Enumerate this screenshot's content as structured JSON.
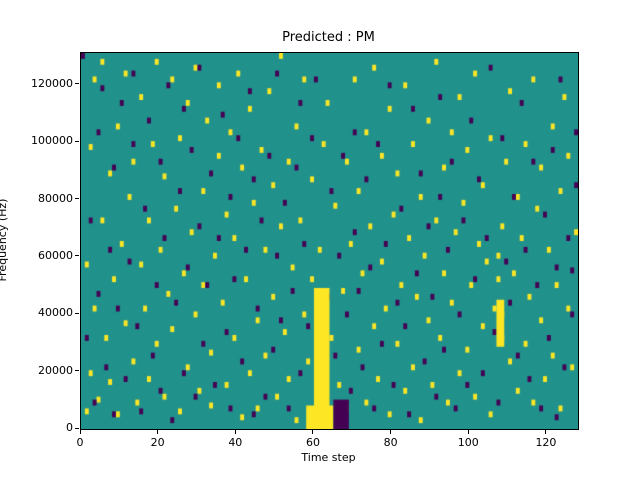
{
  "chart_data": {
    "type": "heatmap",
    "title": "Predicted : PM",
    "xlabel": "Time step",
    "ylabel": "Frequency (Hz)",
    "xlim": [
      0,
      128
    ],
    "ylim": [
      0,
      131072
    ],
    "xticks": [
      0,
      20,
      40,
      60,
      80,
      100,
      120
    ],
    "yticks": [
      0,
      20000,
      40000,
      60000,
      80000,
      100000,
      120000
    ],
    "grid": false,
    "grid_size": {
      "time_steps": 128,
      "freq_bins": 128
    },
    "colors": {
      "background": "#21918c",
      "high": "#fde725",
      "low": "#440154",
      "frame": "#000000"
    },
    "blocks": [
      {
        "c": "y",
        "t": 60,
        "f": 0,
        "w": 4,
        "h": 48
      },
      {
        "c": "y",
        "t": 58,
        "f": 0,
        "w": 7,
        "h": 8
      },
      {
        "c": "p",
        "t": 65,
        "f": 0,
        "w": 4,
        "h": 10
      },
      {
        "c": "y",
        "t": 107,
        "f": 28,
        "w": 2,
        "h": 16
      }
    ],
    "points": {
      "yellow": [
        [
          1,
          5
        ],
        [
          1,
          55
        ],
        [
          2,
          18
        ],
        [
          2,
          95
        ],
        [
          3,
          40
        ],
        [
          3,
          118
        ],
        [
          4,
          9
        ],
        [
          5,
          70
        ],
        [
          5,
          124
        ],
        [
          6,
          30
        ],
        [
          7,
          86
        ],
        [
          7,
          15
        ],
        [
          8,
          50
        ],
        [
          9,
          102
        ],
        [
          9,
          4
        ],
        [
          10,
          62
        ],
        [
          11,
          120
        ],
        [
          11,
          35
        ],
        [
          12,
          78
        ],
        [
          13,
          22
        ],
        [
          13,
          90
        ],
        [
          14,
          8
        ],
        [
          15,
          55
        ],
        [
          15,
          112
        ],
        [
          16,
          40
        ],
        [
          17,
          70
        ],
        [
          17,
          16
        ],
        [
          18,
          96
        ],
        [
          19,
          28
        ],
        [
          19,
          124
        ],
        [
          20,
          60
        ],
        [
          21,
          10
        ],
        [
          21,
          85
        ],
        [
          22,
          45
        ],
        [
          23,
          118
        ],
        [
          23,
          33
        ],
        [
          24,
          74
        ],
        [
          25,
          5
        ],
        [
          25,
          98
        ],
        [
          26,
          52
        ],
        [
          27,
          20
        ],
        [
          27,
          110
        ],
        [
          28,
          66
        ],
        [
          29,
          38
        ],
        [
          29,
          122
        ],
        [
          30,
          12
        ],
        [
          31,
          80
        ],
        [
          31,
          48
        ],
        [
          32,
          104
        ],
        [
          33,
          25
        ],
        [
          33,
          7
        ],
        [
          34,
          58
        ],
        [
          35,
          92
        ],
        [
          35,
          116
        ],
        [
          36,
          42
        ],
        [
          37,
          14
        ],
        [
          37,
          72
        ],
        [
          38,
          100
        ],
        [
          39,
          30
        ],
        [
          39,
          64
        ],
        [
          40,
          120
        ],
        [
          41,
          3
        ],
        [
          41,
          88
        ],
        [
          42,
          50
        ],
        [
          43,
          18
        ],
        [
          43,
          108
        ],
        [
          44,
          76
        ],
        [
          45,
          36
        ],
        [
          45,
          6
        ],
        [
          46,
          94
        ],
        [
          47,
          24
        ],
        [
          47,
          60
        ],
        [
          48,
          114
        ],
        [
          49,
          44
        ],
        [
          49,
          82
        ],
        [
          50,
          10
        ],
        [
          51,
          68
        ],
        [
          51,
          126
        ],
        [
          52,
          32
        ],
        [
          53,
          90
        ],
        [
          53,
          16
        ],
        [
          54,
          54
        ],
        [
          55,
          102
        ],
        [
          55,
          2
        ],
        [
          56,
          70
        ],
        [
          57,
          38
        ],
        [
          57,
          118
        ],
        [
          58,
          22
        ],
        [
          59,
          84
        ],
        [
          59,
          50
        ],
        [
          61,
          60
        ],
        [
          62,
          96
        ],
        [
          63,
          110
        ],
        [
          64,
          30
        ],
        [
          65,
          75
        ],
        [
          66,
          14
        ],
        [
          67,
          46
        ],
        [
          68,
          90
        ],
        [
          68,
          6
        ],
        [
          69,
          62
        ],
        [
          70,
          118
        ],
        [
          71,
          26
        ],
        [
          71,
          80
        ],
        [
          72,
          52
        ],
        [
          73,
          8
        ],
        [
          73,
          100
        ],
        [
          74,
          68
        ],
        [
          75,
          34
        ],
        [
          75,
          122
        ],
        [
          76,
          16
        ],
        [
          77,
          56
        ],
        [
          77,
          92
        ],
        [
          78,
          40
        ],
        [
          79,
          4
        ],
        [
          79,
          108
        ],
        [
          80,
          72
        ],
        [
          81,
          28
        ],
        [
          81,
          86
        ],
        [
          82,
          48
        ],
        [
          83,
          12
        ],
        [
          83,
          116
        ],
        [
          84,
          64
        ],
        [
          85,
          96
        ],
        [
          85,
          20
        ],
        [
          86,
          44
        ],
        [
          87,
          78
        ],
        [
          87,
          2
        ],
        [
          88,
          58
        ],
        [
          89,
          104
        ],
        [
          89,
          36
        ],
        [
          90,
          14
        ],
        [
          91,
          70
        ],
        [
          91,
          124
        ],
        [
          92,
          30
        ],
        [
          93,
          88
        ],
        [
          93,
          52
        ],
        [
          94,
          8
        ],
        [
          95,
          100
        ],
        [
          95,
          42
        ],
        [
          96,
          66
        ],
        [
          97,
          18
        ],
        [
          97,
          112
        ],
        [
          98,
          76
        ],
        [
          99,
          26
        ],
        [
          99,
          94
        ],
        [
          100,
          48
        ],
        [
          101,
          10
        ],
        [
          101,
          120
        ],
        [
          102,
          62
        ],
        [
          103,
          34
        ],
        [
          103,
          82
        ],
        [
          104,
          56
        ],
        [
          105,
          98
        ],
        [
          105,
          4
        ],
        [
          106,
          40
        ],
        [
          107,
          50
        ],
        [
          107,
          58
        ],
        [
          108,
          38
        ],
        [
          108,
          30
        ],
        [
          108,
          68
        ],
        [
          109,
          90
        ],
        [
          110,
          22
        ],
        [
          110,
          114
        ],
        [
          111,
          52
        ],
        [
          112,
          78
        ],
        [
          112,
          12
        ],
        [
          113,
          64
        ],
        [
          114,
          96
        ],
        [
          114,
          28
        ],
        [
          115,
          44
        ],
        [
          116,
          8
        ],
        [
          116,
          118
        ],
        [
          117,
          74
        ],
        [
          118,
          36
        ],
        [
          118,
          88
        ],
        [
          119,
          16
        ],
        [
          120,
          60
        ],
        [
          121,
          102
        ],
        [
          121,
          24
        ],
        [
          122,
          48
        ],
        [
          123,
          80
        ],
        [
          123,
          6
        ],
        [
          124,
          112
        ],
        [
          125,
          40
        ],
        [
          125,
          92
        ],
        [
          126,
          20
        ],
        [
          127,
          66
        ]
      ],
      "purple": [
        [
          0,
          126
        ],
        [
          1,
          30
        ],
        [
          2,
          70
        ],
        [
          3,
          8
        ],
        [
          4,
          100
        ],
        [
          4,
          45
        ],
        [
          5,
          115
        ],
        [
          6,
          20
        ],
        [
          7,
          60
        ],
        [
          8,
          88
        ],
        [
          8,
          4
        ],
        [
          9,
          40
        ],
        [
          10,
          110
        ],
        [
          11,
          16
        ],
        [
          12,
          56
        ],
        [
          13,
          96
        ],
        [
          13,
          120
        ],
        [
          14,
          34
        ],
        [
          15,
          5
        ],
        [
          16,
          74
        ],
        [
          17,
          104
        ],
        [
          18,
          24
        ],
        [
          19,
          48
        ],
        [
          20,
          90
        ],
        [
          20,
          12
        ],
        [
          21,
          64
        ],
        [
          22,
          116
        ],
        [
          23,
          2
        ],
        [
          24,
          42
        ],
        [
          25,
          80
        ],
        [
          26,
          18
        ],
        [
          26,
          108
        ],
        [
          27,
          54
        ],
        [
          28,
          94
        ],
        [
          29,
          10
        ],
        [
          30,
          68
        ],
        [
          30,
          122
        ],
        [
          31,
          28
        ],
        [
          32,
          48
        ],
        [
          33,
          86
        ],
        [
          34,
          14
        ],
        [
          35,
          64
        ],
        [
          36,
          106
        ],
        [
          37,
          32
        ],
        [
          38,
          6
        ],
        [
          38,
          78
        ],
        [
          39,
          50
        ],
        [
          40,
          98
        ],
        [
          41,
          22
        ],
        [
          42,
          60
        ],
        [
          43,
          114
        ],
        [
          44,
          4
        ],
        [
          44,
          84
        ],
        [
          45,
          40
        ],
        [
          46,
          70
        ],
        [
          47,
          10
        ],
        [
          48,
          92
        ],
        [
          49,
          26
        ],
        [
          50,
          58
        ],
        [
          50,
          120
        ],
        [
          51,
          36
        ],
        [
          52,
          76
        ],
        [
          53,
          6
        ],
        [
          54,
          46
        ],
        [
          55,
          88
        ],
        [
          56,
          18
        ],
        [
          56,
          110
        ],
        [
          57,
          62
        ],
        [
          58,
          34
        ],
        [
          59,
          98
        ],
        [
          60,
          118
        ],
        [
          62,
          8
        ],
        [
          63,
          44
        ],
        [
          64,
          80
        ],
        [
          65,
          24
        ],
        [
          66,
          58
        ],
        [
          67,
          92
        ],
        [
          68,
          38
        ],
        [
          69,
          12
        ],
        [
          70,
          66
        ],
        [
          70,
          100
        ],
        [
          71,
          46
        ],
        [
          72,
          20
        ],
        [
          73,
          84
        ],
        [
          74,
          54
        ],
        [
          75,
          6
        ],
        [
          76,
          96
        ],
        [
          77,
          28
        ],
        [
          78,
          62
        ],
        [
          79,
          116
        ],
        [
          80,
          14
        ],
        [
          81,
          42
        ],
        [
          82,
          74
        ],
        [
          83,
          34
        ],
        [
          84,
          4
        ],
        [
          85,
          108
        ],
        [
          86,
          52
        ],
        [
          87,
          86
        ],
        [
          88,
          22
        ],
        [
          89,
          68
        ],
        [
          90,
          44
        ],
        [
          91,
          10
        ],
        [
          92,
          78
        ],
        [
          92,
          112
        ],
        [
          93,
          26
        ],
        [
          94,
          60
        ],
        [
          95,
          90
        ],
        [
          96,
          6
        ],
        [
          97,
          38
        ],
        [
          98,
          70
        ],
        [
          99,
          14
        ],
        [
          100,
          104
        ],
        [
          101,
          50
        ],
        [
          102,
          84
        ],
        [
          103,
          18
        ],
        [
          104,
          64
        ],
        [
          105,
          122
        ],
        [
          106,
          32
        ],
        [
          107,
          8
        ],
        [
          108,
          98
        ],
        [
          109,
          56
        ],
        [
          110,
          42
        ],
        [
          111,
          78
        ],
        [
          112,
          24
        ],
        [
          113,
          110
        ],
        [
          114,
          60
        ],
        [
          115,
          16
        ],
        [
          116,
          90
        ],
        [
          117,
          48
        ],
        [
          118,
          6
        ],
        [
          119,
          72
        ],
        [
          120,
          30
        ],
        [
          121,
          94
        ],
        [
          122,
          54
        ],
        [
          122,
          3
        ],
        [
          123,
          118
        ],
        [
          124,
          20
        ],
        [
          125,
          64
        ],
        [
          126,
          38
        ],
        [
          126,
          53
        ],
        [
          127,
          100
        ],
        [
          127,
          82
        ]
      ]
    }
  }
}
